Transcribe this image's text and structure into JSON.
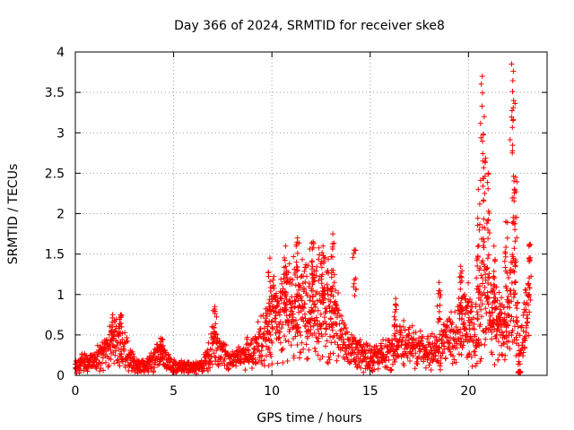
{
  "chart_data": {
    "type": "scatter",
    "title": "Day 366 of 2024, SRMTID for receiver ske8",
    "xlabel": "GPS time / hours",
    "ylabel": "SRMTID / TECUs",
    "xlim": [
      0,
      24
    ],
    "ylim": [
      0,
      4
    ],
    "x_ticks": [
      0,
      5,
      10,
      15,
      20
    ],
    "y_ticks": [
      0,
      0.5,
      1,
      1.5,
      2,
      2.5,
      3,
      3.5,
      4
    ],
    "x_tick_labels": [
      "0",
      "5",
      "10",
      "15",
      "20"
    ],
    "y_tick_labels": [
      "0",
      "0.5",
      "1",
      "1.5",
      "2",
      "2.5",
      "3",
      "3.5",
      "4"
    ],
    "grid": true,
    "marker": "+",
    "color": "#ff0000",
    "series": [
      {
        "name": "SRMTID",
        "trend": [
          [
            0.0,
            0.12
          ],
          [
            0.5,
            0.18
          ],
          [
            1.0,
            0.2
          ],
          [
            1.5,
            0.3
          ],
          [
            1.8,
            0.45
          ],
          [
            2.2,
            0.4
          ],
          [
            2.5,
            0.35
          ],
          [
            3.0,
            0.15
          ],
          [
            3.5,
            0.12
          ],
          [
            4.0,
            0.2
          ],
          [
            4.3,
            0.3
          ],
          [
            4.6,
            0.2
          ],
          [
            5.0,
            0.12
          ],
          [
            5.5,
            0.12
          ],
          [
            6.0,
            0.1
          ],
          [
            6.5,
            0.15
          ],
          [
            7.0,
            0.4
          ],
          [
            7.3,
            0.3
          ],
          [
            7.8,
            0.2
          ],
          [
            8.5,
            0.25
          ],
          [
            9.0,
            0.3
          ],
          [
            9.5,
            0.5
          ],
          [
            10.0,
            0.75
          ],
          [
            10.5,
            0.8
          ],
          [
            11.0,
            0.9
          ],
          [
            11.5,
            0.85
          ],
          [
            12.0,
            1.0
          ],
          [
            12.5,
            0.95
          ],
          [
            13.0,
            0.9
          ],
          [
            13.5,
            0.5
          ],
          [
            14.0,
            0.35
          ],
          [
            14.5,
            0.3
          ],
          [
            15.0,
            0.25
          ],
          [
            15.5,
            0.25
          ],
          [
            16.0,
            0.3
          ],
          [
            16.5,
            0.45
          ],
          [
            17.0,
            0.4
          ],
          [
            17.5,
            0.35
          ],
          [
            18.0,
            0.3
          ],
          [
            18.5,
            0.35
          ],
          [
            19.0,
            0.5
          ],
          [
            19.5,
            0.6
          ],
          [
            20.0,
            0.7
          ],
          [
            20.3,
            0.5
          ],
          [
            20.6,
            1.2
          ],
          [
            21.0,
            1.0
          ],
          [
            21.5,
            0.6
          ],
          [
            22.0,
            0.8
          ],
          [
            22.3,
            1.2
          ],
          [
            22.6,
            0.3
          ],
          [
            23.0,
            0.9
          ]
        ],
        "peaks": [
          [
            1.9,
            0.75
          ],
          [
            2.3,
            0.75
          ],
          [
            4.4,
            0.45
          ],
          [
            7.1,
            0.85
          ],
          [
            9.9,
            1.45
          ],
          [
            10.7,
            1.6
          ],
          [
            11.3,
            1.7
          ],
          [
            12.1,
            1.65
          ],
          [
            12.6,
            1.6
          ],
          [
            13.1,
            1.75
          ],
          [
            14.2,
            1.55
          ],
          [
            16.3,
            0.95
          ],
          [
            18.5,
            1.15
          ],
          [
            19.6,
            1.35
          ],
          [
            20.5,
            2.3
          ],
          [
            20.7,
            3.7
          ],
          [
            20.8,
            3.2
          ],
          [
            21.0,
            2.5
          ],
          [
            21.3,
            1.6
          ],
          [
            21.9,
            1.9
          ],
          [
            22.2,
            3.85
          ],
          [
            22.3,
            3.4
          ],
          [
            22.4,
            2.45
          ],
          [
            22.6,
            0.05
          ],
          [
            23.1,
            1.62
          ]
        ]
      }
    ]
  }
}
